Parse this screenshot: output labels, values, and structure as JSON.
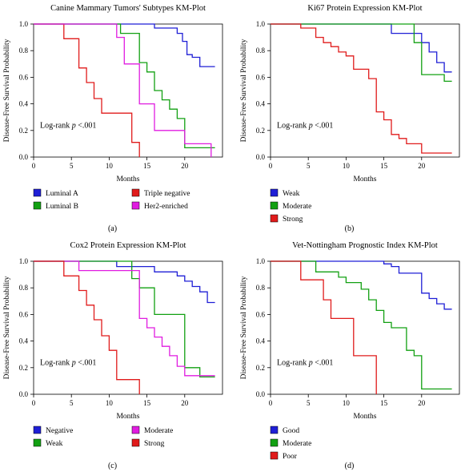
{
  "chart_data": [
    {
      "type": "line",
      "step": true,
      "panel_label": "(a)",
      "title": "Canine Mammary Tumors' Subtypes KM-Plot",
      "xlabel": "Months",
      "ylabel": "Disease-Free Survival Probability",
      "annotation_prefix": "Log-rank ",
      "annotation_var": "p",
      "annotation_suffix": " <.001",
      "xlim": [
        0,
        25
      ],
      "ylim": [
        0,
        1
      ],
      "x_ticks": [
        "0",
        "5",
        "10",
        "15",
        "20"
      ],
      "y_ticks": [
        "0.0",
        "0.2",
        "0.4",
        "0.6",
        "0.8",
        "1.0"
      ],
      "grid": false,
      "legend": "bottom",
      "series": [
        {
          "name": "Luminal A",
          "color": "#1f1fd6",
          "x": [
            0,
            12,
            16,
            19,
            19.7,
            20.3,
            21,
            22,
            24
          ],
          "y": [
            1,
            1,
            0.97,
            0.93,
            0.87,
            0.77,
            0.75,
            0.68,
            0.68
          ]
        },
        {
          "name": "Luminal B",
          "color": "#12a012",
          "x": [
            0,
            11.5,
            14,
            15,
            16,
            17,
            18,
            19,
            20,
            24
          ],
          "y": [
            1,
            0.93,
            0.71,
            0.64,
            0.5,
            0.43,
            0.36,
            0.29,
            0.07,
            0.07
          ]
        },
        {
          "name": "Triple negative",
          "color": "#e01b1b",
          "x": [
            0,
            4,
            6,
            7,
            8,
            9,
            13,
            14
          ],
          "y": [
            1,
            0.89,
            0.67,
            0.56,
            0.44,
            0.33,
            0.11,
            0
          ]
        },
        {
          "name": "Her2-enriched",
          "color": "#e01ce0",
          "x": [
            0,
            11,
            12,
            14,
            16,
            20,
            23.5
          ],
          "y": [
            1,
            0.9,
            0.7,
            0.4,
            0.2,
            0.1,
            0
          ]
        }
      ]
    },
    {
      "type": "line",
      "step": true,
      "panel_label": "(b)",
      "title": "Ki67 Protein Expression KM-Plot",
      "xlabel": "Months",
      "ylabel": "Disease-Free Survival Probability",
      "annotation_prefix": "Log-rank ",
      "annotation_var": "p",
      "annotation_suffix": " <.001",
      "xlim": [
        0,
        25
      ],
      "ylim": [
        0,
        1
      ],
      "x_ticks": [
        "0",
        "5",
        "10",
        "15",
        "20"
      ],
      "y_ticks": [
        "0.0",
        "0.2",
        "0.4",
        "0.6",
        "0.8",
        "1.0"
      ],
      "grid": false,
      "legend": "bottom",
      "series": [
        {
          "name": "Weak",
          "color": "#1f1fd6",
          "x": [
            0,
            16,
            20,
            21,
            22,
            23,
            24
          ],
          "y": [
            1,
            0.93,
            0.86,
            0.79,
            0.71,
            0.64,
            0.64
          ]
        },
        {
          "name": "Moderate",
          "color": "#12a012",
          "x": [
            0,
            19,
            20,
            23,
            24
          ],
          "y": [
            1,
            0.86,
            0.62,
            0.57,
            0.57
          ]
        },
        {
          "name": "Strong",
          "color": "#e01b1b",
          "x": [
            0,
            4,
            6,
            7,
            8,
            9,
            10,
            11,
            13,
            14,
            15,
            16,
            17,
            18,
            20,
            24
          ],
          "y": [
            1,
            0.97,
            0.9,
            0.86,
            0.83,
            0.79,
            0.76,
            0.66,
            0.59,
            0.34,
            0.28,
            0.17,
            0.14,
            0.1,
            0.03,
            0.03
          ]
        }
      ]
    },
    {
      "type": "line",
      "step": true,
      "panel_label": "(c)",
      "title": "Cox2 Protein Expression KM-Plot",
      "xlabel": "Months",
      "ylabel": "Disease-Free Survival Probability",
      "annotation_prefix": "Log-rank ",
      "annotation_var": "p",
      "annotation_suffix": " <.001",
      "xlim": [
        0,
        25
      ],
      "ylim": [
        0,
        1
      ],
      "x_ticks": [
        "0",
        "5",
        "10",
        "15",
        "20"
      ],
      "y_ticks": [
        "0.0",
        "0.2",
        "0.4",
        "0.6",
        "0.8",
        "1.0"
      ],
      "grid": false,
      "legend": "bottom",
      "series": [
        {
          "name": "Negative",
          "color": "#1f1fd6",
          "x": [
            0,
            11,
            14,
            16,
            19,
            20,
            21,
            22,
            23,
            24
          ],
          "y": [
            1,
            0.96,
            0.96,
            0.92,
            0.89,
            0.85,
            0.81,
            0.77,
            0.69,
            0.69
          ]
        },
        {
          "name": "Weak",
          "color": "#12a012",
          "x": [
            0,
            10,
            13,
            14,
            16,
            20,
            22,
            24
          ],
          "y": [
            1,
            1,
            0.87,
            0.8,
            0.6,
            0.2,
            0.13,
            0.13
          ]
        },
        {
          "name": "Moderate",
          "color": "#e01ce0",
          "x": [
            0,
            6,
            13,
            14,
            15,
            16,
            17,
            18,
            19,
            20,
            24
          ],
          "y": [
            1,
            0.93,
            0.93,
            0.57,
            0.5,
            0.43,
            0.36,
            0.29,
            0.21,
            0.14,
            0.14
          ]
        },
        {
          "name": "Strong",
          "color": "#e01b1b",
          "x": [
            0,
            4,
            6,
            7,
            8,
            9,
            10,
            11,
            14
          ],
          "y": [
            1,
            0.89,
            0.78,
            0.67,
            0.56,
            0.44,
            0.33,
            0.11,
            0
          ]
        }
      ]
    },
    {
      "type": "line",
      "step": true,
      "panel_label": "(d)",
      "title": "Vet-Nottingham Prognostic Index KM-Plot",
      "xlabel": "Months",
      "ylabel": "Disease-Free Survival Probability",
      "annotation_prefix": "Log-rank ",
      "annotation_var": "p",
      "annotation_suffix": " <.001",
      "xlim": [
        0,
        25
      ],
      "ylim": [
        0,
        1
      ],
      "x_ticks": [
        "0",
        "5",
        "10",
        "15",
        "20"
      ],
      "y_ticks": [
        "0.0",
        "0.2",
        "0.4",
        "0.6",
        "0.8",
        "1.0"
      ],
      "grid": false,
      "legend": "bottom",
      "series": [
        {
          "name": "Good",
          "color": "#1f1fd6",
          "x": [
            0,
            15,
            16,
            17,
            20,
            21,
            22,
            23,
            24
          ],
          "y": [
            1,
            0.98,
            0.96,
            0.91,
            0.76,
            0.72,
            0.68,
            0.64,
            0.64
          ]
        },
        {
          "name": "Moderate",
          "color": "#12a012",
          "x": [
            0,
            6,
            9,
            10,
            12,
            13,
            14,
            15,
            16,
            18,
            19,
            20,
            24
          ],
          "y": [
            1,
            0.92,
            0.88,
            0.84,
            0.79,
            0.71,
            0.63,
            0.54,
            0.5,
            0.33,
            0.29,
            0.04,
            0.04
          ]
        },
        {
          "name": "Poor",
          "color": "#e01b1b",
          "x": [
            0,
            4,
            7,
            8,
            11,
            14
          ],
          "y": [
            1,
            0.86,
            0.71,
            0.57,
            0.29,
            0
          ]
        }
      ]
    }
  ]
}
